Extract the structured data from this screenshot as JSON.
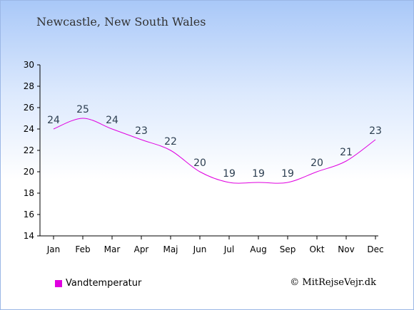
{
  "title": "Newcastle, New South Wales",
  "credit": "© MitRejseVejr.dk",
  "colors": {
    "series": "#e000e0",
    "axis": "#000000"
  },
  "chart_data": {
    "type": "line",
    "categories": [
      "Jan",
      "Feb",
      "Mar",
      "Apr",
      "Maj",
      "Jun",
      "Jul",
      "Aug",
      "Sep",
      "Okt",
      "Nov",
      "Dec"
    ],
    "series": [
      {
        "name": "Vandtemperatur",
        "values": [
          24,
          25,
          24,
          23,
          22,
          20,
          19,
          19,
          19,
          20,
          21,
          23
        ]
      }
    ],
    "yticks": [
      14,
      16,
      18,
      20,
      22,
      24,
      26,
      28,
      30
    ],
    "ylim": [
      14,
      30
    ],
    "grid": false,
    "legend_position": "bottom-left"
  }
}
